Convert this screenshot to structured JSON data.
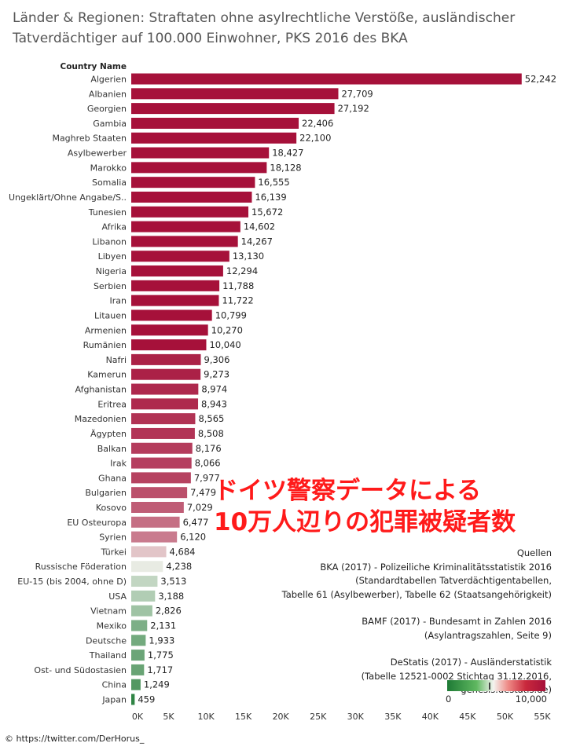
{
  "title": {
    "line1": "Länder & Regionen: Straftaten ohne asylrechtliche Verstöße, ausländischer",
    "line2": "Tatverdächtiger auf 100.000 Einwohner, PKS 2016 des BKA"
  },
  "chart_data": {
    "type": "bar",
    "orientation": "horizontal",
    "category_header": "Country Name",
    "categories": [
      "Algerien",
      "Albanien",
      "Georgien",
      "Gambia",
      "Maghreb Staaten",
      "Asylbewerber",
      "Marokko",
      "Somalia",
      "Ungeklärt/Ohne Angabe/S..",
      "Tunesien",
      "Afrika",
      "Libanon",
      "Libyen",
      "Nigeria",
      "Serbien",
      "Iran",
      "Litauen",
      "Armenien",
      "Rumänien",
      "Nafri",
      "Kamerun",
      "Afghanistan",
      "Eritrea",
      "Mazedonien",
      "Ägypten",
      "Balkan",
      "Irak",
      "Ghana",
      "Bulgarien",
      "Kosovo",
      "EU Osteuropa",
      "Syrien",
      "Türkei",
      "Russische Föderation",
      "EU-15 (bis 2004, ohne D)",
      "USA",
      "Vietnam",
      "Mexiko",
      "Deutsche",
      "Thailand",
      "Ost- und Südostasien",
      "China",
      "Japan"
    ],
    "values": [
      52242,
      27709,
      27192,
      22406,
      22100,
      18427,
      18128,
      16555,
      16139,
      15672,
      14602,
      14267,
      13130,
      12294,
      11788,
      11722,
      10799,
      10270,
      10040,
      9306,
      9273,
      8974,
      8943,
      8565,
      8508,
      8176,
      8066,
      7977,
      7479,
      7029,
      6477,
      6120,
      4684,
      4238,
      3513,
      3188,
      2826,
      2131,
      1933,
      1775,
      1717,
      1249,
      459
    ],
    "value_labels": [
      "52,242",
      "27,709",
      "27,192",
      "22,406",
      "22,100",
      "18,427",
      "18,128",
      "16,555",
      "16,139",
      "15,672",
      "14,602",
      "14,267",
      "13,130",
      "12,294",
      "11,788",
      "11,722",
      "10,799",
      "10,270",
      "10,040",
      "9,306",
      "9,273",
      "8,974",
      "8,943",
      "8,565",
      "8,508",
      "8,176",
      "8,066",
      "7,977",
      "7,479",
      "7,029",
      "6,477",
      "6,120",
      "4,684",
      "4,238",
      "3,513",
      "3,188",
      "2,826",
      "2,131",
      "1,933",
      "1,775",
      "1,717",
      "1,249",
      "459"
    ],
    "xlim": [
      0,
      55000
    ],
    "xticks": [
      "0K",
      "5K",
      "10K",
      "15K",
      "20K",
      "25K",
      "30K",
      "35K",
      "40K",
      "45K",
      "50K",
      "55K"
    ],
    "color_scale": {
      "min": 0,
      "max": 10000,
      "low_color": "#1e7a35",
      "mid_color": "#f0f0ea",
      "high_color": "#a6113a"
    },
    "grid": false
  },
  "overlay": {
    "line1": "ドイツ警察データによる",
    "line2": "10万人辺りの犯罪被疑者数"
  },
  "sources": {
    "heading": "Quellen",
    "bka": [
      "BKA (2017) - Polizeiliche Kriminalitätsstatistik 2016",
      "(Standardtabellen Tatverdächtigentabellen,",
      "Tabelle 61 (Asylbewerber), Tabelle 62 (Staatsangehörigkeit)"
    ],
    "bamf": [
      "BAMF (2017) - Bundesamt in Zahlen 2016",
      "(Asylantragszahlen, Seite 9)"
    ],
    "destatis": [
      "DeStatis (2017) -  Ausländerstatistik",
      "(Tabelle 12521-0002 Stichtag 31.12.2016,  genesis.destatis.de)"
    ]
  },
  "legend": {
    "min_label": "0",
    "max_label": "10,000"
  },
  "copyright": "© https://twitter.com/DerHorus_"
}
